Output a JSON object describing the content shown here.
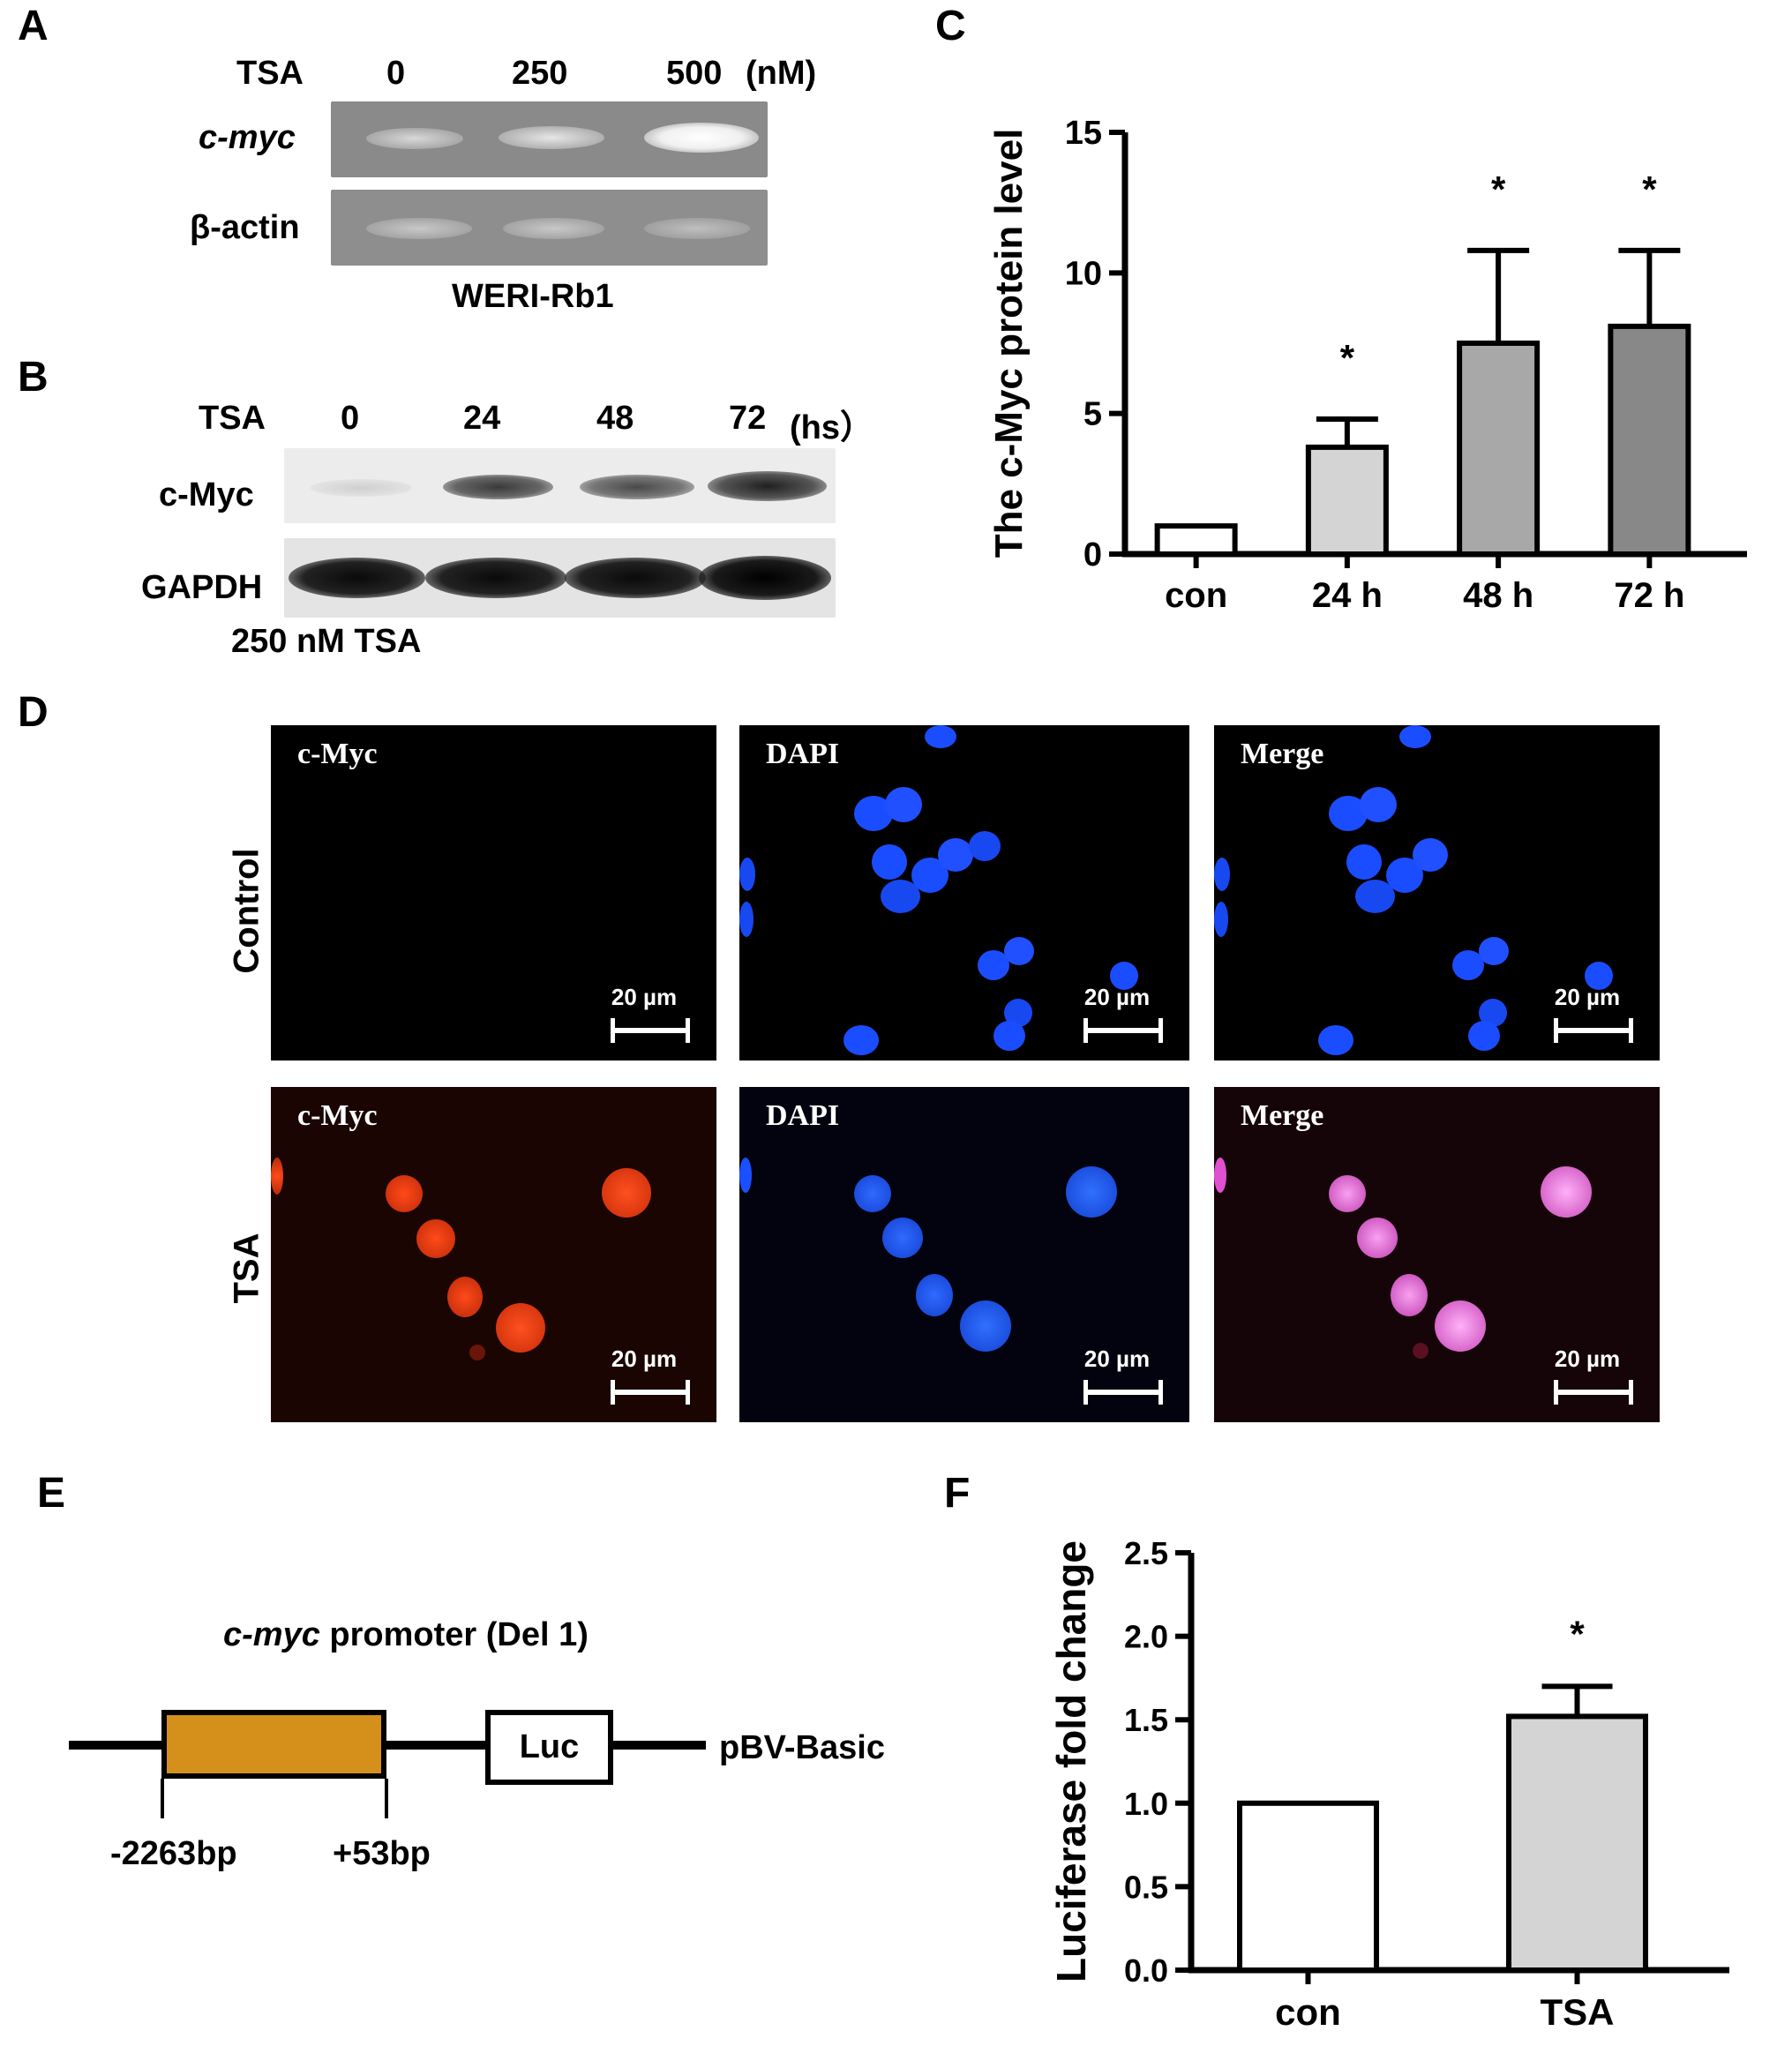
{
  "panels": {
    "A": {
      "letter": "A",
      "treatment_label": "TSA",
      "doses": [
        "0",
        "250",
        "500"
      ],
      "unit": "(nM)",
      "rows": [
        "c-myc",
        "β-actin"
      ],
      "cell_line": "WERI-Rb1"
    },
    "B": {
      "letter": "B",
      "treatment_label": "TSA",
      "times": [
        "0",
        "24",
        "48",
        "72"
      ],
      "unit": "(hs）",
      "rows": [
        "c-Myc",
        "GAPDH"
      ],
      "condition": "250 nM TSA"
    },
    "C": {
      "letter": "C"
    },
    "D": {
      "letter": "D",
      "row_labels": [
        "Control",
        "TSA"
      ],
      "channels": [
        "c-Myc",
        "DAPI",
        "Merge"
      ],
      "scale_bar": "20 µm"
    },
    "E": {
      "letter": "E",
      "title_italic": "c-myc",
      "title_rest": " promoter (Del 1)",
      "reporter": "Luc",
      "vector": "pBV-Basic",
      "start": "-2263bp",
      "end": "+53bp",
      "promoter_color": "#d4901a"
    },
    "F": {
      "letter": "F"
    }
  },
  "chart_data": [
    {
      "panel": "C",
      "type": "bar",
      "ylabel": "The c-Myc protein level",
      "categories": [
        "con",
        "24 h",
        "48 h",
        "72 h"
      ],
      "values": [
        1.0,
        3.8,
        7.5,
        8.1
      ],
      "errors": [
        0,
        1.0,
        3.3,
        2.7
      ],
      "significance": [
        "",
        "*",
        "*",
        "*"
      ],
      "bar_colors": [
        "#ffffff",
        "#d4d4d4",
        "#a8a8a8",
        "#888888"
      ],
      "ylim": [
        0,
        15
      ],
      "yticks": [
        0,
        5,
        10,
        15
      ]
    },
    {
      "panel": "F",
      "type": "bar",
      "ylabel": "Luciferase fold change",
      "categories": [
        "con",
        "TSA"
      ],
      "values": [
        1.0,
        1.52
      ],
      "errors": [
        0,
        0.18
      ],
      "significance": [
        "",
        "*"
      ],
      "bar_colors": [
        "#ffffff",
        "#d4d4d4"
      ],
      "ylim": [
        0,
        2.5
      ],
      "yticks": [
        "0.0",
        "0.5",
        "1.0",
        "1.5",
        "2.0",
        "2.5"
      ]
    }
  ]
}
